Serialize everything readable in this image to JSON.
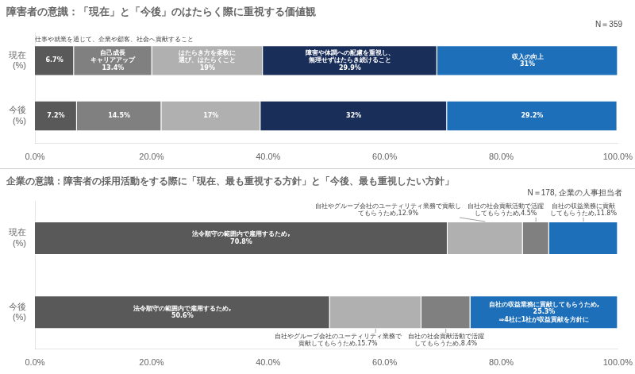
{
  "chart_data": [
    {
      "type": "bar",
      "orientation": "horizontal",
      "stacked": true,
      "title": "障害者の意識：「現在」と「今後」のはたらく際に重視する価値観",
      "annotations": [
        "N＝359"
      ],
      "subtitle": "仕事や就業を通じて、企業や顧客、社会へ貢献すること",
      "categories": [
        "現在\n(%)",
        "今後\n(%)"
      ],
      "series": [
        {
          "color": "#595959",
          "values": [
            6.7,
            7.2
          ],
          "value_labels": [
            "6.7%",
            "7.2%"
          ]
        },
        {
          "color": "#808080",
          "values": [
            13.4,
            14.5
          ],
          "value_labels": [
            "自己成長\nキャリアアップ\n13.4%",
            "14.5%"
          ]
        },
        {
          "color": "#b0b0b0",
          "values": [
            19.0,
            17.0
          ],
          "value_labels": [
            "はたらき方を柔軟に\n選び、はたらくこと\n19%",
            "17%"
          ]
        },
        {
          "color": "#1a2e5a",
          "values": [
            29.9,
            32.0
          ],
          "value_labels": [
            "障害や体調への配慮を重視し、\n無理せずはたらき続けること\n29.9%",
            "32%"
          ]
        },
        {
          "color": "#1e6fba",
          "values": [
            31.0,
            29.2
          ],
          "value_labels": [
            "収入の向上\n31%",
            "29.2%"
          ]
        }
      ],
      "xlim": [
        0,
        100
      ],
      "xticks": [
        {
          "value": 0,
          "label": "0.0%"
        },
        {
          "value": 20,
          "label": "20.0%"
        },
        {
          "value": 40,
          "label": "40.0%"
        },
        {
          "value": 60,
          "label": "60.0%"
        },
        {
          "value": 80,
          "label": "80.0%"
        },
        {
          "value": 100,
          "label": "100.0%"
        }
      ],
      "grid": false,
      "data_labels": true
    },
    {
      "type": "bar",
      "orientation": "horizontal",
      "stacked": true,
      "title": "企業の意識：障害者の採用活動をする際に「現在、最も重視する方針」と「今後、最も重視したい方針」",
      "annotations": [
        "N＝178, 企業の人事担当者"
      ],
      "categories": [
        "現在\n(%)",
        "今後\n(%)"
      ],
      "series": [
        {
          "color": "#595959",
          "values": [
            70.8,
            50.6
          ],
          "value_labels": [
            "法令順守の範囲内で雇用するため,\n70.8%",
            "法令順守の範囲内で雇用するため,\n50.6%"
          ]
        },
        {
          "color": "#b0b0b0",
          "values": [
            12.9,
            15.7
          ],
          "value_labels": [
            "自社やグループ会社のユーティリティ業務で貢献し\nてもらうため,12.9%",
            "自社やグループ会社のユーティリティ業務で\n貢献してもらうため,15.7%"
          ]
        },
        {
          "color": "#808080",
          "values": [
            4.5,
            8.4
          ],
          "value_labels": [
            "自社の社会貢献活動で活躍\nしてもらうため,4.5%",
            "自社の社会貢献活動で活躍\nしてもらうため,8.4%"
          ]
        },
        {
          "color": "#1e6fba",
          "values": [
            11.8,
            25.3
          ],
          "value_labels": [
            "自社の収益業務に貢献\nしてもらうため,11.8%",
            "自社の収益業務に貢献してもらうため,\n25.3%\n⇒4社に1社が収益貢献を方針に"
          ]
        }
      ],
      "xlim": [
        0,
        100
      ],
      "xticks": [
        {
          "value": 0,
          "label": "0.0%"
        },
        {
          "value": 20,
          "label": "20.0%"
        },
        {
          "value": 40,
          "label": "40.0%"
        },
        {
          "value": 60,
          "label": "60.0%"
        },
        {
          "value": 80,
          "label": "80.0%"
        },
        {
          "value": 100,
          "label": "100.0%"
        }
      ],
      "grid": false,
      "data_labels": true
    }
  ]
}
